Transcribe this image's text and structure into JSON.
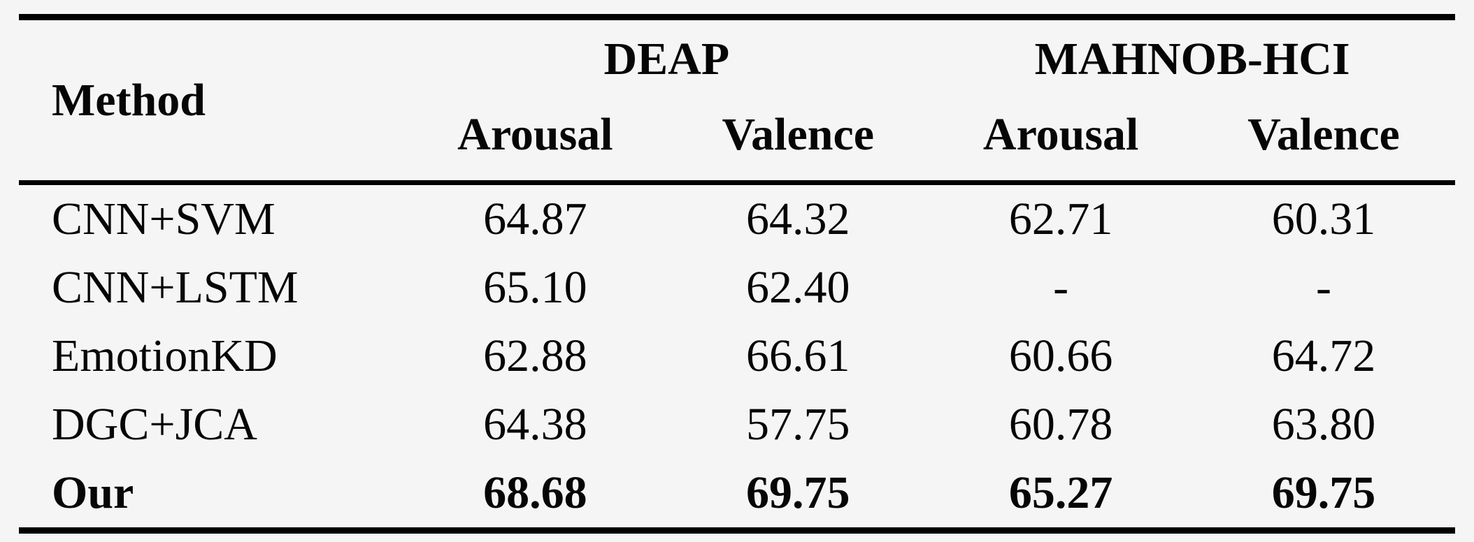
{
  "table": {
    "header": {
      "method": "Method",
      "groups": [
        {
          "label": "DEAP",
          "sub": [
            "Arousal",
            "Valence"
          ]
        },
        {
          "label": "MAHNOB-HCI",
          "sub": [
            "Arousal",
            "Valence"
          ]
        }
      ]
    },
    "rows": [
      {
        "method": "CNN+SVM",
        "bold": false,
        "values": [
          "64.87",
          "64.32",
          "62.71",
          "60.31"
        ]
      },
      {
        "method": "CNN+LSTM",
        "bold": false,
        "values": [
          "65.10",
          "62.40",
          "-",
          "-"
        ]
      },
      {
        "method": "EmotionKD",
        "bold": false,
        "values": [
          "62.88",
          "66.61",
          "60.66",
          "64.72"
        ]
      },
      {
        "method": "DGC+JCA",
        "bold": false,
        "values": [
          "64.38",
          "57.75",
          "60.78",
          "63.80"
        ]
      },
      {
        "method": "Our",
        "bold": true,
        "values": [
          "68.68",
          "69.75",
          "65.27",
          "69.75"
        ]
      }
    ]
  },
  "colors": {
    "background": "#f5f5f5",
    "text": "#060606",
    "rule": "#000000"
  }
}
